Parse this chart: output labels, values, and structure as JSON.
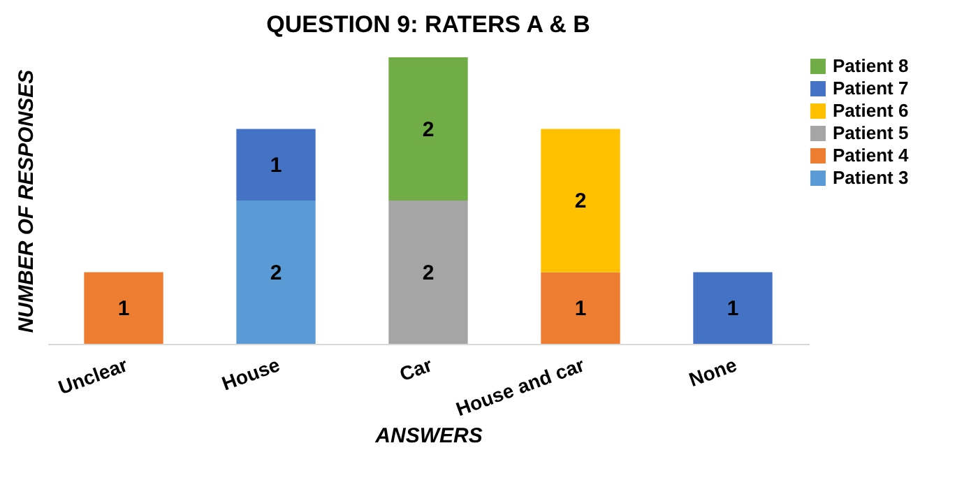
{
  "chart_data": {
    "type": "bar",
    "title": "QUESTION 9: RATERS A & B",
    "xlabel": "ANSWERS",
    "ylabel": "NUMBER OF RESPONSES",
    "categories": [
      "Unclear",
      "House",
      "Car",
      "House and car",
      "None"
    ],
    "stacked": true,
    "data_labels": true,
    "legend": "top right",
    "tick_labels": "x",
    "grid": false,
    "series": [
      {
        "name": "Patient 3",
        "color": "#5b9bd5",
        "values": [
          null,
          2,
          null,
          null,
          null
        ]
      },
      {
        "name": "Patient 4",
        "color": "#ed7d31",
        "values": [
          1,
          null,
          null,
          1,
          null
        ]
      },
      {
        "name": "Patient 5",
        "color": "#a5a5a5",
        "values": [
          null,
          null,
          2,
          null,
          null
        ]
      },
      {
        "name": "Patient 6",
        "color": "#ffc000",
        "values": [
          null,
          null,
          null,
          2,
          null
        ]
      },
      {
        "name": "Patient 7",
        "color": "#4472c4",
        "values": [
          null,
          1,
          null,
          null,
          1
        ]
      },
      {
        "name": "Patient 8",
        "color": "#70ad47",
        "values": [
          null,
          null,
          2,
          null,
          null
        ]
      }
    ]
  }
}
